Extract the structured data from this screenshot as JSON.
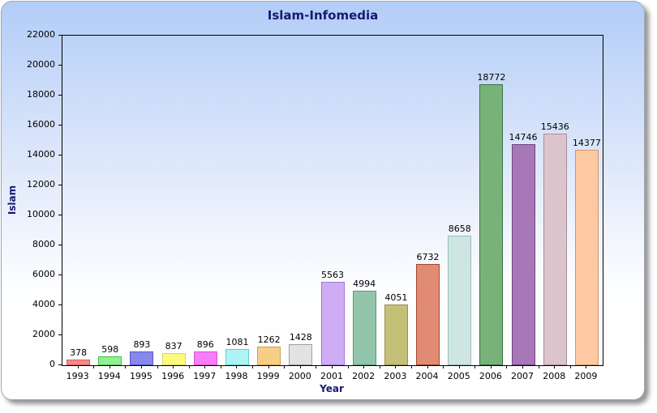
{
  "chart_data": {
    "type": "bar",
    "title": "Islam-Infomedia",
    "xlabel": "Year",
    "ylabel": "Islam",
    "categories": [
      "1993",
      "1994",
      "1995",
      "1996",
      "1997",
      "1998",
      "1999",
      "2000",
      "2001",
      "2002",
      "2003",
      "2004",
      "2005",
      "2006",
      "2007",
      "2008",
      "2009"
    ],
    "values": [
      378,
      598,
      893,
      837,
      896,
      1081,
      1262,
      1428,
      5563,
      4994,
      4051,
      6732,
      8658,
      18772,
      14746,
      15436,
      14377
    ],
    "value_labels_shown": true,
    "ylim": [
      0,
      22000
    ],
    "ytick_step": 2000,
    "grid": false,
    "legend": "none",
    "bar_fills": [
      "#f48a8a",
      "#8ef08e",
      "#8888ea",
      "#fbfb7d",
      "#f97df9",
      "#aef4f4",
      "#f6cf85",
      "#e2e2e2",
      "#cfadf5",
      "#92c5a9",
      "#c5c077",
      "#e18b75",
      "#cee5e1",
      "#77b378",
      "#a877b8",
      "#dcc4cd",
      "#fdc9a3"
    ],
    "bar_borders": [
      "#d85c5c",
      "#50c050",
      "#5858cc",
      "#d8d855",
      "#d455d4",
      "#66cccc",
      "#d0a050",
      "#a0a0a0",
      "#a378d8",
      "#5e967c",
      "#96914a",
      "#a04832",
      "#96bfb8",
      "#3f6f44",
      "#70477e",
      "#a88c98",
      "#d09468"
    ]
  },
  "colors": {
    "title_text": "#191970",
    "axis_title_text": "#191970",
    "tick_text": "#000000",
    "plot_border": "#000000",
    "card_top": "#b2cdf8",
    "card_bottom": "#ffffff"
  }
}
